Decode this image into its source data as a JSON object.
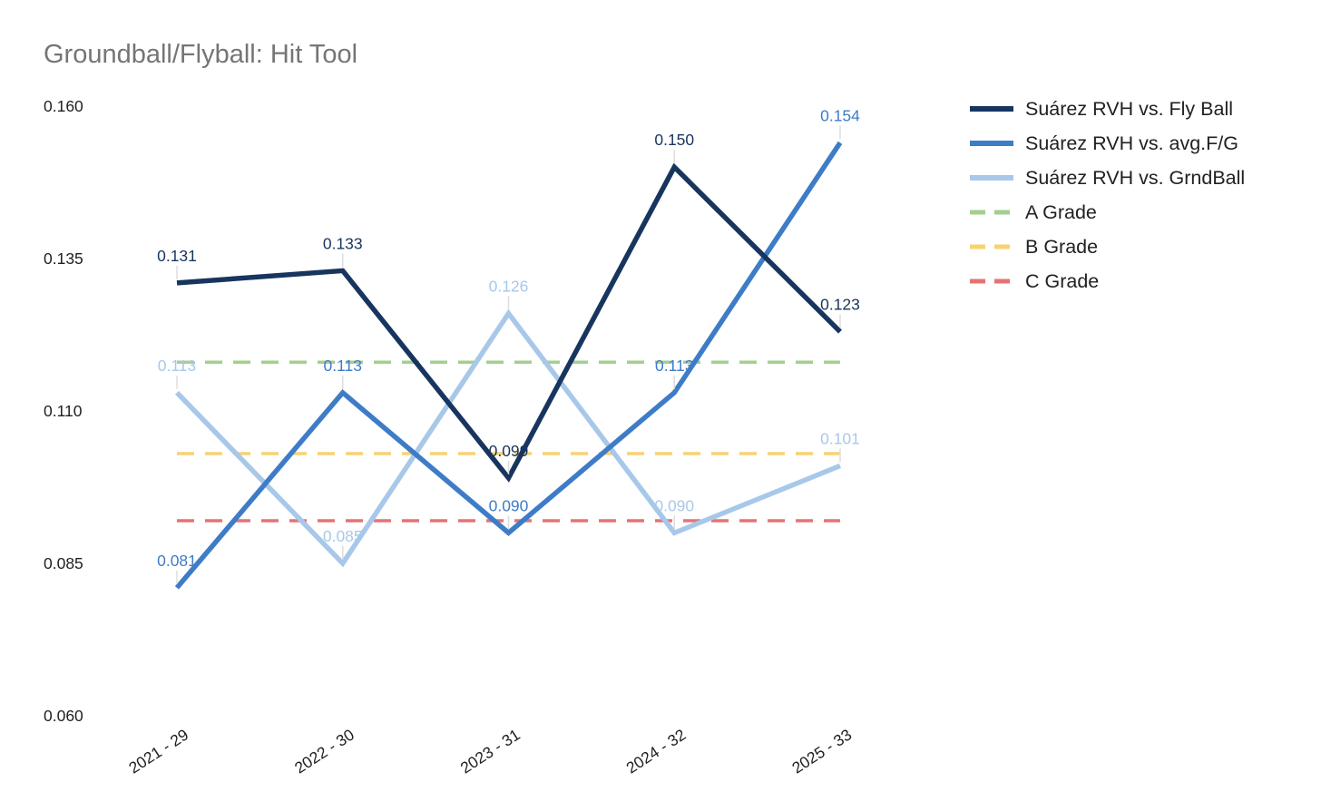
{
  "title": "Groundball/Flyball: Hit Tool",
  "chart_data": {
    "type": "line",
    "title": "Groundball/Flyball: Hit Tool",
    "categories": [
      "2021 - 29",
      "2022 - 30",
      "2023 - 31",
      "2024 - 32",
      "2025 - 33"
    ],
    "series": [
      {
        "key": "fly-ball",
        "name": "Suárez RVH vs. Fly Ball",
        "color": "#17355e",
        "values": [
          0.131,
          0.133,
          0.099,
          0.15,
          0.123
        ]
      },
      {
        "key": "avg-fg",
        "name": "Suárez RVH vs. avg.F/G",
        "color": "#3e7cc7",
        "values": [
          0.081,
          0.113,
          0.09,
          0.113,
          0.154
        ]
      },
      {
        "key": "grndball",
        "name": "Suárez RVH vs. GrndBall",
        "color": "#a8c8ea",
        "values": [
          0.113,
          0.085,
          0.126,
          0.09,
          0.101
        ]
      }
    ],
    "grade_lines": [
      {
        "key": "a-grade",
        "name": "A Grade",
        "color": "#a3cf8f",
        "value": 0.118
      },
      {
        "key": "b-grade",
        "name": "B Grade",
        "color": "#f7d272",
        "value": 0.103
      },
      {
        "key": "c-grade",
        "name": "C Grade",
        "color": "#e57373",
        "value": 0.092
      }
    ],
    "y_axis": {
      "min": 0.06,
      "max": 0.16,
      "ticks": [
        "0.160",
        "0.135",
        "0.110",
        "0.085",
        "0.060"
      ]
    },
    "xlabel": "",
    "ylabel": "",
    "grid": false,
    "legend_position": "right",
    "data_label_format": "3-decimals",
    "colors": {
      "background": "#ffffff",
      "title_text": "#757575",
      "axis_text": "#1f1f1f",
      "leader_line": "#dddddd"
    }
  }
}
